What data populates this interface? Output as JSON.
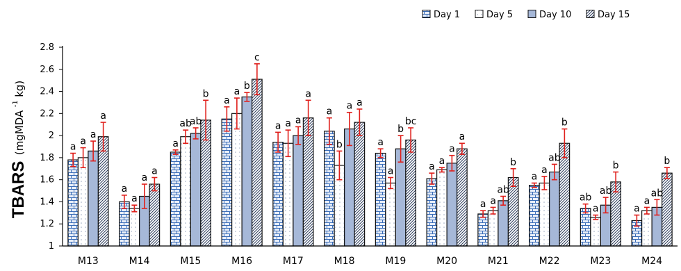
{
  "chart_data": {
    "type": "bar",
    "title": "",
    "xlabel": "",
    "ylabel_main": "TBARS",
    "ylabel_unit_pre": "(mgMDA",
    "ylabel_unit_sup": "-1",
    "ylabel_unit_post": "kg)",
    "ylim": [
      1,
      2.8
    ],
    "yticks": [
      "1",
      "1.2",
      "1.4",
      "1.6",
      "1.8",
      "2",
      "2.2",
      "2.4",
      "2.6",
      "2.8"
    ],
    "legend_position": "top-right",
    "categories": [
      "M13",
      "M14",
      "M15",
      "M16",
      "M17",
      "M18",
      "M19",
      "M20",
      "M21",
      "M22",
      "M23",
      "M24"
    ],
    "series": [
      {
        "name": "Day 1",
        "pattern": "bricks",
        "values": [
          1.78,
          1.4,
          1.85,
          2.15,
          1.94,
          2.04,
          1.84,
          1.61,
          1.29,
          1.55,
          1.34,
          1.23
        ],
        "errors": [
          0.06,
          0.06,
          0.02,
          0.11,
          0.09,
          0.12,
          0.04,
          0.05,
          0.03,
          0.02,
          0.04,
          0.05
        ],
        "labels": [
          "a",
          "a",
          "a",
          "a",
          "a",
          "a",
          "a",
          "a",
          "a",
          "a",
          "ab",
          "a"
        ]
      },
      {
        "name": "Day 5",
        "pattern": "dots",
        "values": [
          1.8,
          1.34,
          1.99,
          2.2,
          1.93,
          1.73,
          1.57,
          1.69,
          1.32,
          1.57,
          1.26,
          1.32
        ],
        "errors": [
          0.09,
          0.03,
          0.06,
          0.14,
          0.12,
          0.13,
          0.05,
          0.02,
          0.03,
          0.06,
          0.02,
          0.03
        ],
        "labels": [
          "a",
          "a",
          "ab",
          "a",
          "a",
          "b",
          "a",
          "a",
          "a",
          "a",
          "a",
          "a"
        ]
      },
      {
        "name": "Day 10",
        "pattern": "solid",
        "values": [
          1.86,
          1.45,
          2.02,
          2.35,
          2.0,
          2.06,
          1.88,
          1.75,
          1.41,
          1.67,
          1.37,
          1.35
        ],
        "errors": [
          0.09,
          0.11,
          0.05,
          0.04,
          0.08,
          0.15,
          0.12,
          0.07,
          0.04,
          0.07,
          0.07,
          0.07
        ],
        "labels": [
          "a",
          "a",
          "ab",
          "b",
          "a",
          "a",
          "b",
          "a",
          "ab",
          "ab",
          "ab",
          "ab"
        ]
      },
      {
        "name": "Day 15",
        "pattern": "diagonal",
        "values": [
          1.99,
          1.56,
          2.14,
          2.51,
          2.16,
          2.12,
          1.96,
          1.88,
          1.62,
          1.93,
          1.58,
          1.66
        ],
        "errors": [
          0.13,
          0.06,
          0.18,
          0.14,
          0.16,
          0.12,
          0.11,
          0.05,
          0.08,
          0.13,
          0.09,
          0.05
        ],
        "labels": [
          "a",
          "a",
          "b",
          "c",
          "a",
          "a",
          "bc",
          "a",
          "b",
          "b",
          "b",
          "b"
        ]
      }
    ]
  },
  "colors": {
    "bar_fill": "#ffffff",
    "bar_stroke": "#111111",
    "bricks_fill": "#e8eef8",
    "bricks_line": "#3a6db8",
    "dots": "#9aa8c0",
    "solid": "#a6b8d8",
    "diagonal": "#2a3a5a",
    "error_bar": "#e0201c",
    "axis": "#000000"
  }
}
